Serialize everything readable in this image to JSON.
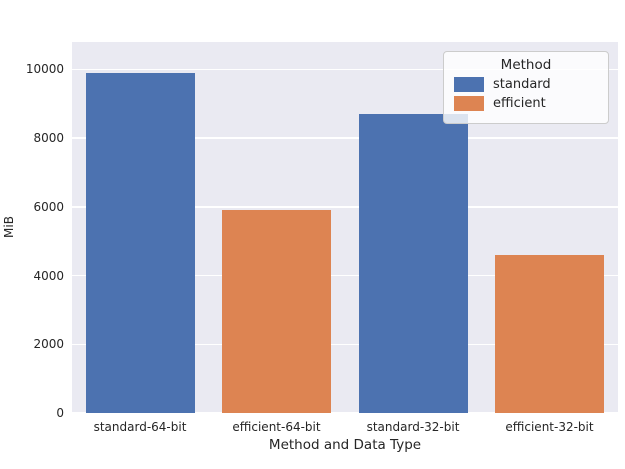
{
  "chart_data": {
    "type": "bar",
    "title": "",
    "xlabel": "Method and Data Type",
    "ylabel": "MiB",
    "categories": [
      "standard-64-bit",
      "efficient-64-bit",
      "standard-32-bit",
      "efficient-32-bit"
    ],
    "values": [
      9900,
      5900,
      8700,
      4600
    ],
    "bar_colors": [
      "#4c72b0",
      "#dd8452",
      "#4c72b0",
      "#dd8452"
    ],
    "ylim": [
      0,
      10800
    ],
    "yticks": [
      0,
      2000,
      4000,
      6000,
      8000,
      10000
    ],
    "grid": "horizontal",
    "legend": {
      "title": "Method",
      "position": "upper-right",
      "entries": [
        {
          "label": "standard",
          "color": "#4c72b0"
        },
        {
          "label": "efficient",
          "color": "#dd8452"
        }
      ]
    },
    "colors": {
      "figure_background": "#ffffff",
      "axes_background": "#eaeaf2",
      "grid": "#ffffff",
      "text": "#262626"
    }
  }
}
